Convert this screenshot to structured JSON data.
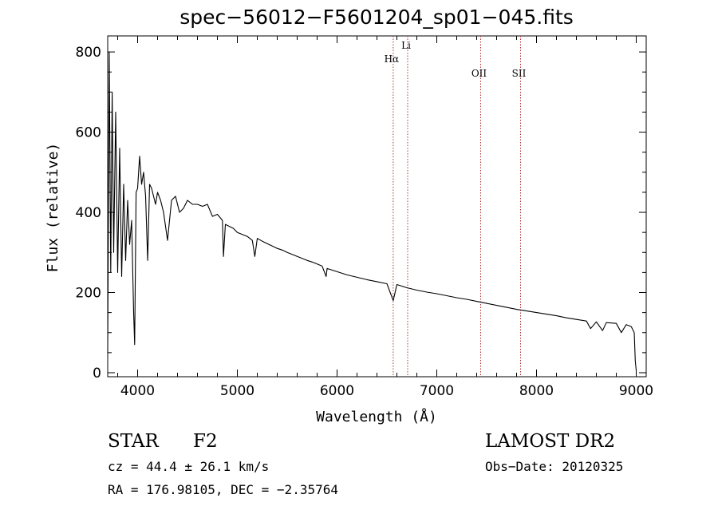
{
  "chart_data": {
    "type": "line",
    "title": "spec−56012−F5601204_sp01−045.fits",
    "xlabel": "Wavelength (Å)",
    "ylabel": "Flux (relative)",
    "xlim": [
      3700,
      9100
    ],
    "ylim": [
      -10,
      840
    ],
    "x_ticks": [
      4000,
      5000,
      6000,
      7000,
      8000,
      9000
    ],
    "y_ticks": [
      0,
      200,
      400,
      600,
      800
    ],
    "grid": false,
    "series": [
      {
        "x": [
          3700,
          3715,
          3730,
          3745,
          3760,
          3780,
          3800,
          3820,
          3840,
          3860,
          3880,
          3900,
          3920,
          3940,
          3960,
          3970,
          3985,
          4000,
          4020,
          4040,
          4060,
          4080,
          4101,
          4120,
          4140,
          4160,
          4180,
          4200,
          4230,
          4260,
          4300,
          4340,
          4380,
          4420,
          4460,
          4500,
          4550,
          4600,
          4650,
          4700,
          4750,
          4800,
          4850,
          4861,
          4880,
          4920,
          4960,
          5000,
          5050,
          5100,
          5150,
          5175,
          5200,
          5250,
          5300,
          5350,
          5400,
          5450,
          5500,
          5550,
          5600,
          5650,
          5700,
          5750,
          5800,
          5850,
          5890,
          5900,
          5950,
          6000,
          6100,
          6200,
          6300,
          6400,
          6500,
          6563,
          6600,
          6700,
          6800,
          6900,
          7000,
          7100,
          7200,
          7300,
          7400,
          7500,
          7600,
          7700,
          7800,
          7900,
          8000,
          8100,
          8200,
          8300,
          8400,
          8500,
          8542,
          8600,
          8662,
          8700,
          8800,
          8850,
          8900,
          8950,
          8980,
          8990,
          9000
        ],
        "y": [
          50,
          800,
          250,
          700,
          300,
          650,
          250,
          560,
          240,
          470,
          280,
          430,
          320,
          380,
          150,
          70,
          450,
          460,
          540,
          470,
          500,
          440,
          280,
          470,
          460,
          440,
          420,
          450,
          430,
          400,
          330,
          430,
          440,
          400,
          410,
          430,
          420,
          420,
          415,
          420,
          390,
          395,
          380,
          290,
          370,
          365,
          360,
          350,
          345,
          340,
          330,
          290,
          335,
          328,
          322,
          316,
          310,
          306,
          300,
          295,
          290,
          285,
          280,
          276,
          271,
          266,
          240,
          260,
          256,
          252,
          244,
          238,
          232,
          227,
          222,
          180,
          220,
          212,
          206,
          201,
          197,
          192,
          187,
          183,
          178,
          173,
          168,
          163,
          158,
          154,
          150,
          146,
          142,
          137,
          133,
          129,
          110,
          127,
          105,
          125,
          123,
          100,
          120,
          115,
          100,
          30,
          5
        ]
      }
    ],
    "line_markers": [
      {
        "label": "Hα",
        "x": 6563
      },
      {
        "label": "Li",
        "x": 6708
      },
      {
        "label": "OII",
        "x": 7440
      },
      {
        "label": "SII",
        "x": 7840
      }
    ],
    "marker_color": "#b03030"
  },
  "info": {
    "object_class": "STAR",
    "subclass": "F2",
    "survey": "LAMOST DR2",
    "cz": "cz = 44.4 ± 26.1 km/s",
    "obs_date": "Obs−Date: 20120325",
    "coords": "RA = 176.98105, DEC =  −2.35764"
  }
}
